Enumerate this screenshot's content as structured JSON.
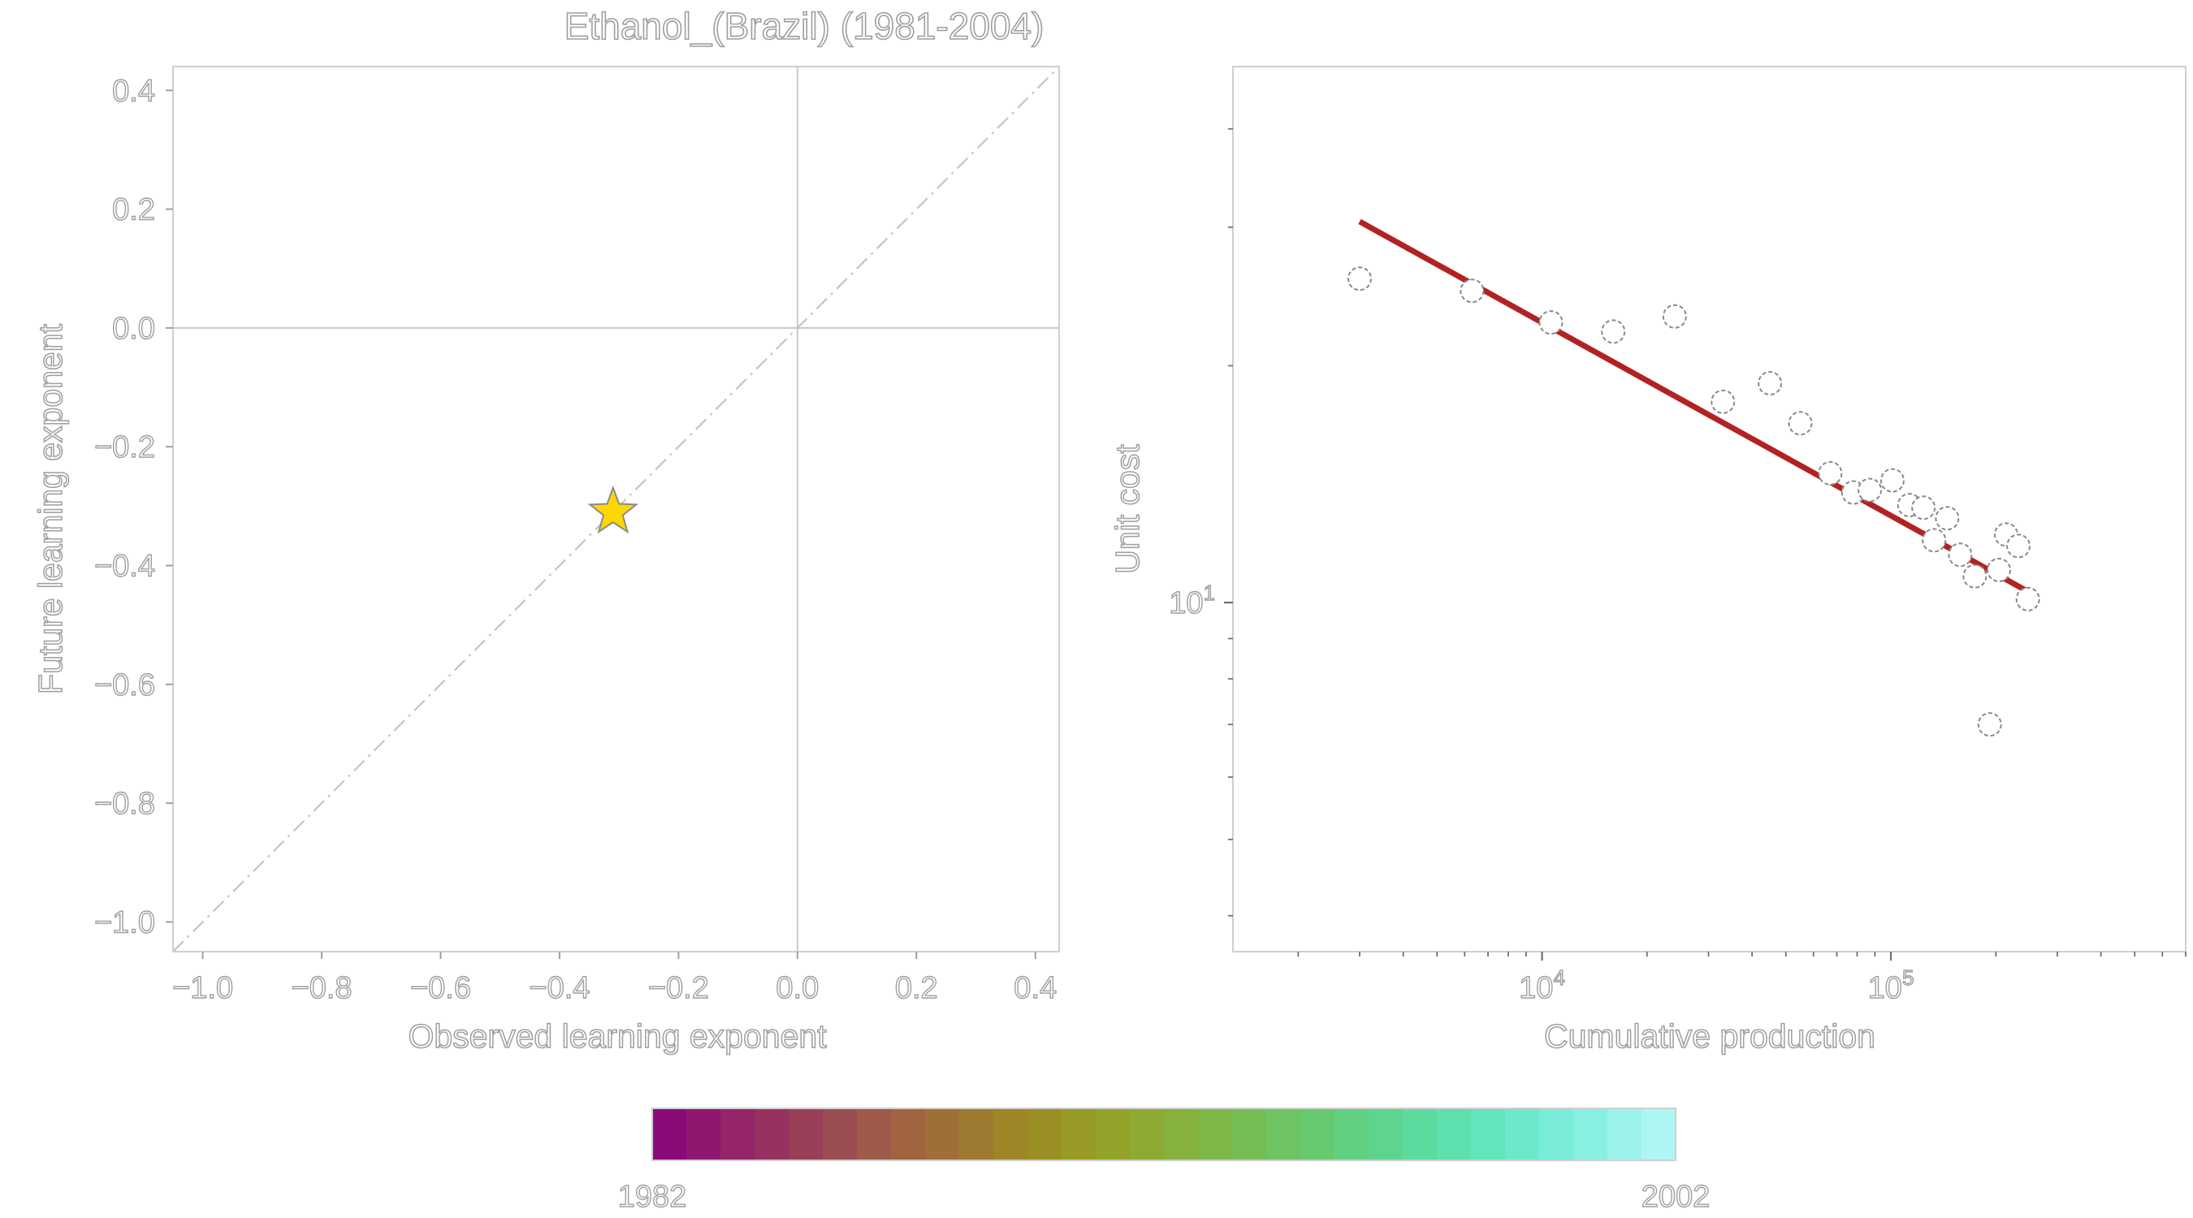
{
  "figure_title": "Ethanol_(Brazil) (1981-2004)",
  "chart_data": [
    {
      "type": "scatter",
      "name": "learning-exponent-comparison",
      "xlabel": "Observed learning exponent",
      "ylabel": "Future learning exponent",
      "xlim": [
        -1.05,
        0.44
      ],
      "ylim": [
        -1.05,
        0.44
      ],
      "xticks": [
        -1.0,
        -0.8,
        -0.6,
        -0.4,
        -0.2,
        0.0,
        0.2,
        0.4
      ],
      "yticks": [
        -1.0,
        -0.8,
        -0.6,
        -0.4,
        -0.2,
        0.0,
        0.2,
        0.4
      ],
      "xtick_labels": [
        "−1.0",
        "−0.8",
        "−0.6",
        "−0.4",
        "−0.2",
        "0.0",
        "0.2",
        "0.4"
      ],
      "ytick_labels": [
        "−1.0",
        "−0.8",
        "−0.6",
        "−0.4",
        "−0.2",
        "0.0",
        "0.2",
        "0.4"
      ],
      "reference_lines": {
        "x_zero": true,
        "y_zero": true,
        "identity_dashdot": true
      },
      "points": [
        {
          "x": -0.31,
          "y": -0.31,
          "marker": "star",
          "color": "#FFD700"
        }
      ],
      "grid": false
    },
    {
      "type": "scatter",
      "name": "experience-curve",
      "xlabel": "Cumulative production",
      "ylabel": "Unit cost",
      "xscale": "log",
      "yscale": "log",
      "xlim": [
        1300,
        700000
      ],
      "ylim": [
        3.6,
        48
      ],
      "xtick_major": [
        10000,
        100000
      ],
      "xtick_major_labels": [
        {
          "base": "10",
          "exp": "4"
        },
        {
          "base": "10",
          "exp": "5"
        }
      ],
      "ytick_major": [
        10
      ],
      "ytick_major_labels": [
        {
          "base": "10",
          "exp": "1"
        }
      ],
      "x": [
        3000,
        6300,
        10600,
        16000,
        24000,
        33000,
        45000,
        55000,
        67000,
        78000,
        87000,
        101000,
        113000,
        124000,
        133000,
        145000,
        158000,
        174000,
        192000,
        204000,
        214000,
        232000,
        247000
      ],
      "y": [
        25.8,
        24.9,
        22.7,
        22.1,
        23.1,
        18.0,
        19.0,
        16.9,
        14.6,
        13.8,
        13.9,
        14.3,
        13.3,
        13.2,
        12.0,
        12.8,
        11.5,
        10.8,
        7.0,
        11.0,
        12.2,
        11.8,
        10.1
      ],
      "color_years": [
        1982,
        1983,
        1984,
        1985,
        1986,
        1987,
        1988,
        1989,
        1990,
        1991,
        1992,
        1993,
        1994,
        1995,
        1996,
        1997,
        1998,
        1999,
        2000,
        2001,
        2002,
        2002,
        2002
      ],
      "fit_line": {
        "x": [
          3000,
          260000
        ],
        "y": [
          30.5,
          10.2
        ],
        "color": "#B22222"
      },
      "grid": false
    }
  ],
  "colorbar": {
    "label_min": "1982",
    "label_max": "2002",
    "colors": [
      "#8B0A78",
      "#8F1770",
      "#932568",
      "#963260",
      "#993F58",
      "#9C4D51",
      "#9F5A49",
      "#A06540",
      "#9F6F38",
      "#9E7A30",
      "#9D8528",
      "#9A8F22",
      "#979A24",
      "#93A32A",
      "#8DAA33",
      "#86B13D",
      "#7EB748",
      "#76BE54",
      "#6EC462",
      "#67CA71",
      "#61D080",
      "#5DD58F",
      "#5BDB9E",
      "#5DE0AD",
      "#62E4BC",
      "#6BE9CA",
      "#79EDD7",
      "#8AF0E2",
      "#9CF3EB",
      "#AEF6F3"
    ]
  }
}
